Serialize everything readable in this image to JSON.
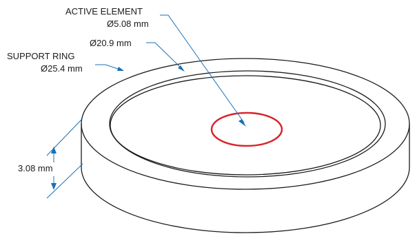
{
  "labels": {
    "active_element_title": "ACTIVE ELEMENT",
    "active_element_diameter": "Ø5.08 mm",
    "inner_diameter": "Ø20.9 mm",
    "support_ring_title": "SUPPORT RING",
    "support_ring_diameter": "Ø25.4 mm",
    "thickness": "3.08 mm"
  },
  "colors": {
    "outline": "#1a1a1a",
    "leader": "#1a6fb5",
    "active_element": "#d9242b",
    "background": "#ffffff"
  }
}
